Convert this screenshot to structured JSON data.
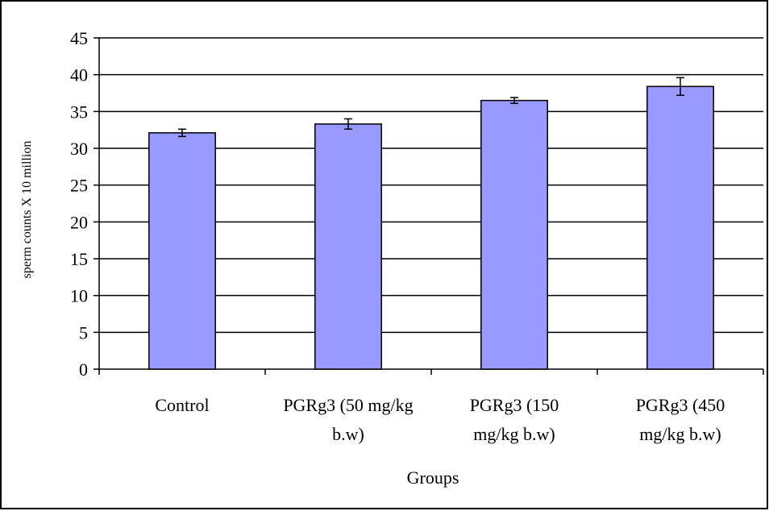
{
  "chart_data": {
    "type": "bar",
    "title": "",
    "xlabel": "Groups",
    "ylabel": "sperm counts X 10 million",
    "categories": [
      [
        "Control"
      ],
      [
        "PGRg3 (50 mg/kg",
        "b.w)"
      ],
      [
        "PGRg3 (150",
        "mg/kg b.w)"
      ],
      [
        "PGRg3 (450",
        "mg/kg b.w)"
      ]
    ],
    "values": [
      32.1,
      33.3,
      36.5,
      38.4
    ],
    "errors": [
      0.5,
      0.7,
      0.4,
      1.2
    ],
    "ylim": [
      0,
      45
    ],
    "yticks": [
      "0",
      "5",
      "10",
      "15",
      "20",
      "25",
      "30",
      "35",
      "40",
      "45"
    ],
    "grid": true,
    "legend": "none",
    "bar_color": "#9999ff",
    "bar_edge_color": "#000000"
  }
}
